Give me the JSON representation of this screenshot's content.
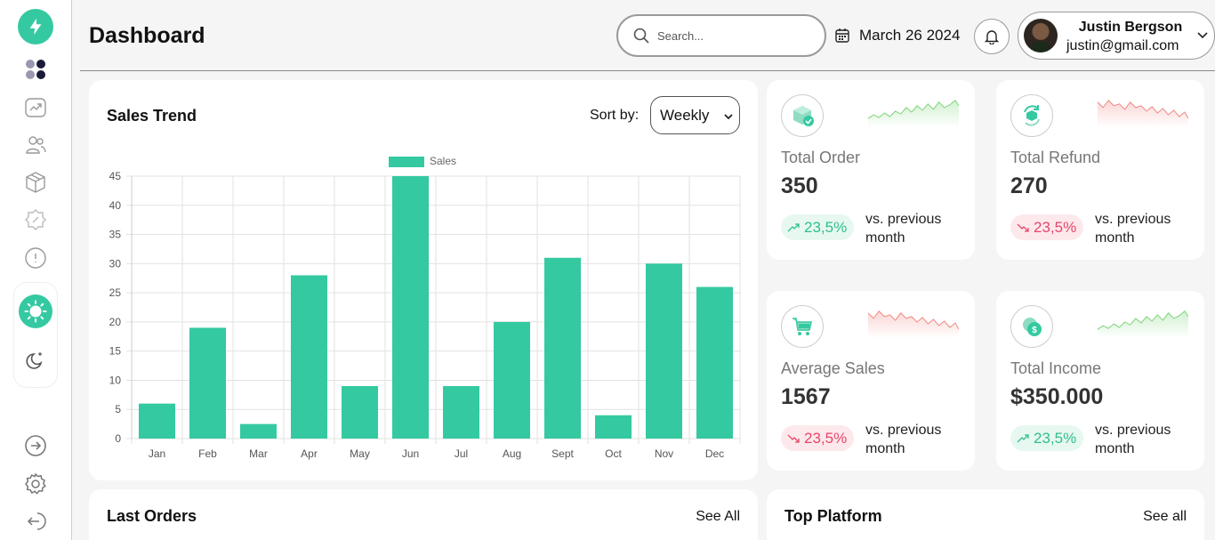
{
  "header": {
    "title": "Dashboard",
    "search_placeholder": "Search...",
    "date": "March 26 2024",
    "user_name": "Justin Bergson",
    "user_email": "justin@gmail.com"
  },
  "sidebar": {
    "icons": [
      "bolt-logo-icon",
      "dashboard-icon",
      "trend-icon",
      "users-icon",
      "box-icon",
      "badge-icon",
      "info-icon",
      "sun-icon",
      "moon-icon",
      "forward-icon",
      "settings-icon",
      "logout-icon"
    ]
  },
  "sales_trend": {
    "title": "Sales Trend",
    "sort_label": "Sort by:",
    "sort_value": "Weekly"
  },
  "chart_data": {
    "type": "bar",
    "categories": [
      "Jan",
      "Feb",
      "Mar",
      "Apr",
      "May",
      "Jun",
      "Jul",
      "Aug",
      "Sept",
      "Oct",
      "Nov",
      "Dec"
    ],
    "series": [
      {
        "name": "Sales",
        "values": [
          6,
          19,
          2.5,
          28,
          9,
          45,
          9,
          20,
          31,
          4,
          30,
          26
        ]
      }
    ],
    "ylim": [
      0,
      45
    ],
    "yticks": [
      0,
      5,
      10,
      15,
      20,
      25,
      30,
      35,
      40,
      45
    ],
    "grid": true,
    "legend_position": "top",
    "bar_color": "#34c9a1"
  },
  "stats": [
    {
      "label": "Total Order",
      "value": "350",
      "change": "23,5%",
      "trend": "up",
      "compare": "vs. previous month",
      "icon": "box-check-icon",
      "spark_color": "#7fd47a"
    },
    {
      "label": "Total Refund",
      "value": "270",
      "change": "23,5%",
      "trend": "down",
      "compare": "vs. previous month",
      "icon": "refund-icon",
      "spark_color": "#f08a84"
    },
    {
      "label": "Average Sales",
      "value": "1567",
      "change": "23,5%",
      "trend": "down",
      "compare": "vs. previous month",
      "icon": "cart-icon",
      "spark_color": "#f08a84"
    },
    {
      "label": "Total Income",
      "value": "$350.000",
      "change": "23,5%",
      "trend": "up",
      "compare": "vs. previous month",
      "icon": "coin-icon",
      "spark_color": "#7fd47a"
    }
  ],
  "last_orders": {
    "title": "Last Orders",
    "see_all": "See All"
  },
  "top_platform": {
    "title": "Top Platform",
    "see_all": "See all"
  },
  "colors": {
    "accent": "#34c9a1",
    "up": "#2fbf8d",
    "down": "#e8456a"
  }
}
